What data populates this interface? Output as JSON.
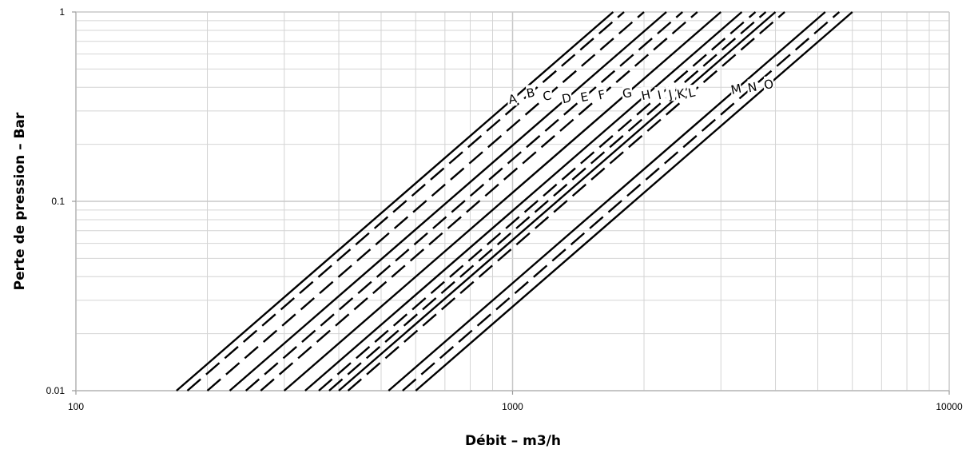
{
  "chart_data": {
    "type": "line",
    "title": "",
    "xlabel": "Débit – m3/h",
    "ylabel": "Perte de pression – Bar",
    "xscale": "log",
    "yscale": "log",
    "xlim": [
      100,
      10000
    ],
    "ylim": [
      0.01,
      1
    ],
    "x_ticks": [
      {
        "value": 100,
        "label": "100"
      },
      {
        "value": 1000,
        "label": "1000"
      },
      {
        "value": 10000,
        "label": "10000"
      }
    ],
    "y_ticks": [
      {
        "value": 0.01,
        "label": "0.01"
      },
      {
        "value": 0.1,
        "label": "0.1"
      },
      {
        "value": 1,
        "label": "1"
      }
    ],
    "grid": true,
    "legend": "none",
    "series": [
      {
        "name": "A",
        "style": "solid",
        "points": [
          [
            170,
            0.01
          ],
          [
            1700,
            1
          ]
        ]
      },
      {
        "name": "B",
        "style": "dashed",
        "points": [
          [
            180,
            0.01
          ],
          [
            1800,
            1
          ]
        ]
      },
      {
        "name": "C",
        "style": "dashed",
        "points": [
          [
            200,
            0.01
          ],
          [
            2000,
            1
          ]
        ]
      },
      {
        "name": "D",
        "style": "solid",
        "points": [
          [
            225,
            0.01
          ],
          [
            2250,
            1
          ]
        ]
      },
      {
        "name": "E",
        "style": "dashed",
        "points": [
          [
            245,
            0.01
          ],
          [
            2450,
            1
          ]
        ]
      },
      {
        "name": "F",
        "style": "dashed",
        "points": [
          [
            265,
            0.01
          ],
          [
            2650,
            1
          ]
        ]
      },
      {
        "name": "G",
        "style": "solid",
        "points": [
          [
            300,
            0.01
          ],
          [
            3000,
            1
          ]
        ]
      },
      {
        "name": "H",
        "style": "solid",
        "points": [
          [
            335,
            0.01
          ],
          [
            3350,
            1
          ]
        ]
      },
      {
        "name": "I",
        "style": "dashed",
        "points": [
          [
            360,
            0.01
          ],
          [
            3600,
            1
          ]
        ]
      },
      {
        "name": "J",
        "style": "dashed",
        "points": [
          [
            380,
            0.01
          ],
          [
            3800,
            1
          ]
        ]
      },
      {
        "name": "K",
        "style": "solid",
        "points": [
          [
            400,
            0.01
          ],
          [
            4000,
            1
          ]
        ]
      },
      {
        "name": "L",
        "style": "dashed",
        "points": [
          [
            420,
            0.01
          ],
          [
            4200,
            1
          ]
        ]
      },
      {
        "name": "M",
        "style": "solid",
        "points": [
          [
            520,
            0.01
          ],
          [
            5200,
            1
          ]
        ]
      },
      {
        "name": "N",
        "style": "dashed",
        "points": [
          [
            560,
            0.01
          ],
          [
            5600,
            1
          ]
        ]
      },
      {
        "name": "O",
        "style": "solid",
        "points": [
          [
            600,
            0.01
          ],
          [
            6000,
            1
          ]
        ]
      }
    ],
    "label_positions": [
      {
        "text": "A",
        "x": 1000
      },
      {
        "text": "B",
        "x": 1100
      },
      {
        "text": "C",
        "x": 1200
      },
      {
        "text": "D",
        "x": 1330
      },
      {
        "text": "E",
        "x": 1460
      },
      {
        "text": "F",
        "x": 1600
      },
      {
        "text": "G",
        "x": 1830
      },
      {
        "text": "H",
        "x": 2020
      },
      {
        "text": "I",
        "x": 2170
      },
      {
        "text": "J",
        "x": 2300
      },
      {
        "text": "K",
        "x": 2430
      },
      {
        "text": "L",
        "x": 2570
      },
      {
        "text": "M",
        "x": 3250
      },
      {
        "text": "N",
        "x": 3540
      },
      {
        "text": "O",
        "x": 3860
      }
    ]
  }
}
